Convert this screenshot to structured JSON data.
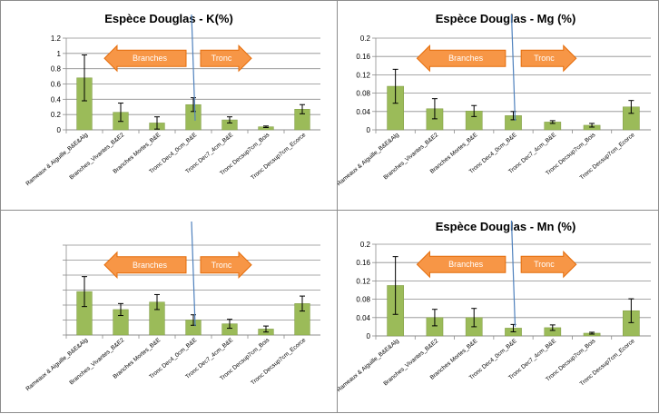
{
  "colors": {
    "bar": "#9bbb59",
    "bar_edge": "#7f9a44",
    "arrow": "#f79646",
    "arrow_edge": "#e46c0a",
    "divider": "#4f81bd",
    "grid": "#8c8c8c"
  },
  "categories": [
    "Rameaux & Aiguille_B&E&Alg",
    "Branches_Vivantes_B&E2",
    "Branches Mortes_B&E",
    "Tronc Dec4_0cm_B&E",
    "Tronc Dec7_4cm_B&E",
    "Tronc Decsup7cm_Bois",
    "Tronc Decsup7cm_Ecorce"
  ],
  "arrows": {
    "branches": "Branches",
    "tronc": "Tronc"
  },
  "chart_data": [
    {
      "type": "bar",
      "title": "Espèce Douglas - K(%)",
      "ylim": [
        0,
        1.2
      ],
      "yticks": [
        0,
        0.2,
        0.4,
        0.6,
        0.8,
        1,
        1.2
      ],
      "ytick_labels": [
        "0",
        "0.2",
        "0.4",
        "0.6",
        "0.8",
        "1",
        "1.2"
      ],
      "values": [
        0.68,
        0.23,
        0.09,
        0.33,
        0.13,
        0.04,
        0.27
      ],
      "errors": [
        0.3,
        0.12,
        0.08,
        0.09,
        0.04,
        0.01,
        0.06
      ],
      "grid": true
    },
    {
      "type": "bar",
      "title": "Espèce Douglas - Mg (%)",
      "ylim": [
        0,
        0.2
      ],
      "yticks": [
        0,
        0.04,
        0.08,
        0.12,
        0.16,
        0.2
      ],
      "ytick_labels": [
        "0",
        "0.04",
        "0.08",
        "0.12",
        "0.16",
        "0.2"
      ],
      "values": [
        0.095,
        0.046,
        0.041,
        0.031,
        0.017,
        0.01,
        0.05
      ],
      "errors": [
        0.037,
        0.022,
        0.012,
        0.009,
        0.003,
        0.004,
        0.014
      ],
      "grid": true
    },
    {
      "type": "bar",
      "title": "",
      "ylim": [
        0,
        6
      ],
      "yticks": [
        0,
        1,
        2,
        3,
        4,
        5,
        6
      ],
      "ytick_labels": [
        "",
        "",
        "",
        "",
        "",
        "",
        ""
      ],
      "values": [
        2.9,
        1.7,
        2.2,
        1.0,
        0.75,
        0.4,
        2.1
      ],
      "errors": [
        1.0,
        0.4,
        0.5,
        0.35,
        0.3,
        0.2,
        0.5
      ],
      "grid": true
    },
    {
      "type": "bar",
      "title": "Espèce Douglas - Mn (%)",
      "ylim": [
        0,
        0.2
      ],
      "yticks": [
        0,
        0.04,
        0.08,
        0.12,
        0.16,
        0.2
      ],
      "ytick_labels": [
        "0",
        "0.04",
        "0.08",
        "0.12",
        "0.16",
        "0.2"
      ],
      "values": [
        0.11,
        0.04,
        0.04,
        0.017,
        0.018,
        0.006,
        0.055
      ],
      "errors": [
        0.063,
        0.018,
        0.02,
        0.008,
        0.006,
        0.002,
        0.026
      ],
      "grid": true
    }
  ]
}
